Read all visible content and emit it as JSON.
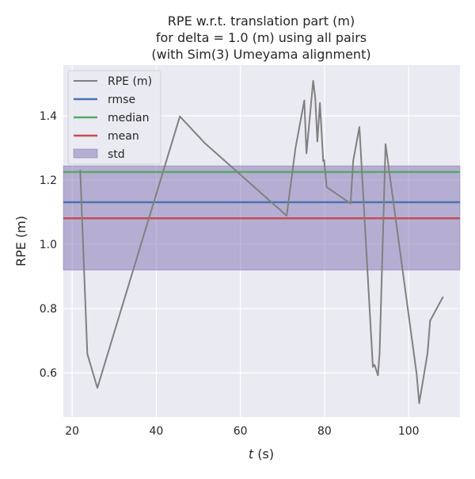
{
  "chart_data": {
    "type": "line",
    "title_lines": [
      "RPE w.r.t. translation part (m)",
      "for delta = 1.0 (m) using all pairs",
      "(with Sim(3) Umeyama alignment)"
    ],
    "xlabel_italic": "t",
    "xlabel_unit": " (s)",
    "ylabel": "RPE (m)",
    "xlim": [
      17.9,
      112.2
    ],
    "ylim": [
      0.462,
      1.558
    ],
    "xticks": [
      20,
      40,
      60,
      80,
      100
    ],
    "xtick_labels": [
      "20",
      "40",
      "60",
      "80",
      "100"
    ],
    "yticks": [
      0.6,
      0.8,
      1.0,
      1.2,
      1.4
    ],
    "ytick_labels": [
      "0.6",
      "0.8",
      "1.0",
      "1.2",
      "1.4"
    ],
    "grid": true,
    "legend_placement": "top-left",
    "series": [
      {
        "name": "RPE (m)",
        "color": "#808080",
        "x": [
          21.9,
          23.6,
          26.0,
          45.6,
          51.6,
          71.0,
          73.1,
          75.2,
          75.7,
          77.3,
          77.8,
          78.3,
          78.9,
          79.7,
          79.9,
          80.5,
          86.2,
          86.8,
          88.3,
          91.5,
          91.9,
          92.7,
          93.1,
          94.5,
          101.9,
          102.5,
          104.5,
          105.1,
          108.2
        ],
        "y": [
          1.232,
          0.659,
          0.553,
          1.398,
          1.314,
          1.089,
          1.3,
          1.448,
          1.283,
          1.509,
          1.456,
          1.32,
          1.44,
          1.259,
          1.262,
          1.178,
          1.127,
          1.259,
          1.365,
          0.618,
          0.625,
          0.592,
          0.662,
          1.312,
          0.596,
          0.505,
          0.662,
          0.762,
          0.837
        ]
      }
    ],
    "hlines": [
      {
        "name": "rmse",
        "value": 1.131,
        "color": "#4C72B0"
      },
      {
        "name": "median",
        "value": 1.225,
        "color": "#55A868"
      },
      {
        "name": "mean",
        "value": 1.081,
        "color": "#C44E52"
      }
    ],
    "band": {
      "name": "std",
      "low": 0.92,
      "high": 1.244,
      "color": "#8172B2"
    }
  }
}
